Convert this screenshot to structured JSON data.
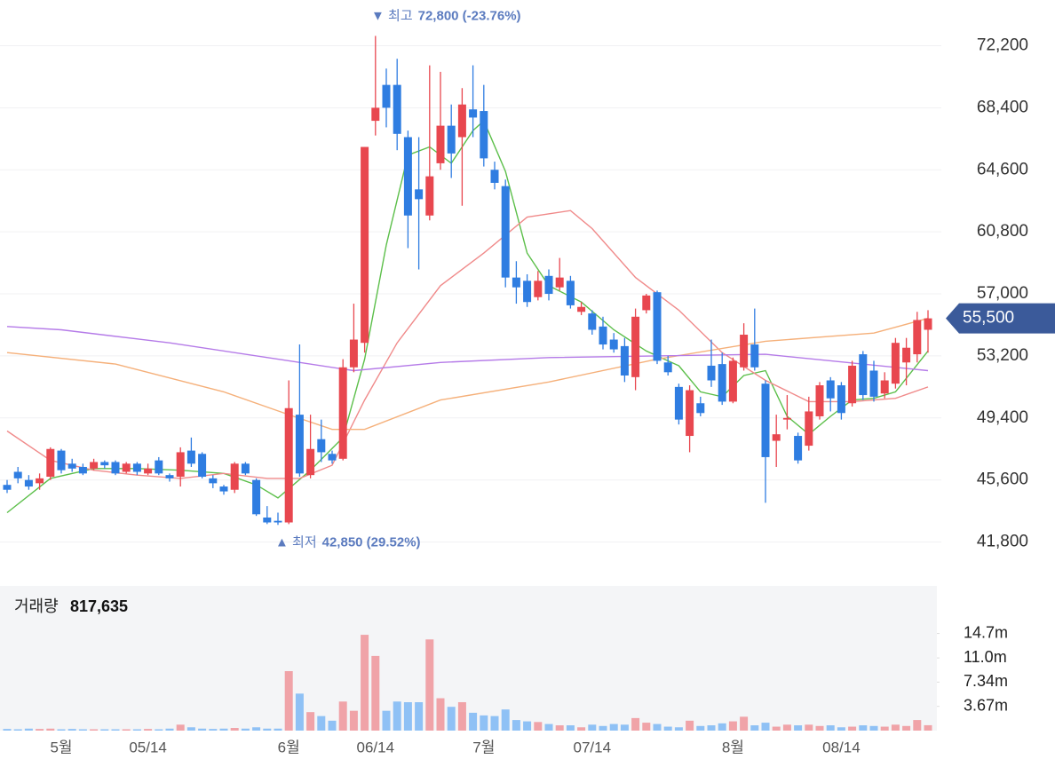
{
  "chart_data": {
    "type": "candlestick",
    "categories": [
      null,
      null,
      null,
      null,
      null,
      "5월",
      null,
      null,
      null,
      null,
      null,
      null,
      null,
      "05/14",
      null,
      null,
      null,
      null,
      null,
      null,
      null,
      null,
      null,
      null,
      null,
      null,
      "6월",
      null,
      null,
      null,
      null,
      null,
      null,
      null,
      "06/14",
      null,
      null,
      null,
      null,
      null,
      null,
      null,
      null,
      null,
      "7월",
      null,
      null,
      null,
      null,
      null,
      null,
      null,
      null,
      null,
      "07/14",
      null,
      null,
      null,
      null,
      null,
      null,
      null,
      null,
      null,
      null,
      null,
      null,
      "8월",
      null,
      null,
      null,
      null,
      null,
      null,
      null,
      null,
      null,
      "08/14",
      null,
      null,
      null,
      null,
      null,
      null,
      null,
      null
    ],
    "open": [
      45300,
      46100,
      45600,
      45400,
      45800,
      47400,
      46600,
      46400,
      46300,
      46700,
      46700,
      46100,
      46600,
      46000,
      46800,
      45900,
      45800,
      47400,
      47200,
      45700,
      45200,
      45000,
      46600,
      45600,
      43300,
      43100,
      43000,
      49600,
      45900,
      48100,
      47200,
      46900,
      52500,
      54000,
      67600,
      69800,
      69800,
      66600,
      63400,
      61800,
      65000,
      67300,
      66600,
      68300,
      68200,
      64600,
      63600,
      58000,
      57800,
      56800,
      58100,
      57400,
      57800,
      55900,
      55800,
      55000,
      54200,
      53800,
      51900,
      56000,
      57100,
      52800,
      51300,
      48300,
      50300,
      52600,
      52700,
      50400,
      52500,
      53900,
      51500,
      48000,
      49300,
      48300,
      47700,
      49500,
      51700,
      51400,
      50300,
      53300,
      52300,
      50900,
      51500,
      52800,
      53300,
      54800
    ],
    "high": [
      45600,
      46400,
      45900,
      46000,
      47600,
      47500,
      46900,
      46600,
      46900,
      46800,
      46800,
      46700,
      46700,
      46600,
      47000,
      46000,
      47600,
      48200,
      47300,
      45900,
      45300,
      46700,
      46700,
      45700,
      44000,
      43600,
      51700,
      53900,
      49600,
      49300,
      47400,
      53000,
      56400,
      66000,
      72800,
      70800,
      71400,
      67000,
      66600,
      71000,
      70600,
      68600,
      69600,
      71000,
      69800,
      65100,
      64000,
      59000,
      58200,
      58400,
      58500,
      59200,
      58100,
      56500,
      56000,
      55600,
      54600,
      54300,
      56100,
      57000,
      57200,
      53200,
      51500,
      51400,
      50700,
      54200,
      53400,
      53100,
      55200,
      56100,
      51700,
      49600,
      50800,
      48500,
      50700,
      51600,
      51900,
      51600,
      52900,
      53500,
      52900,
      52200,
      54300,
      54300,
      55900,
      56000
    ],
    "low": [
      44800,
      45400,
      45000,
      45000,
      45600,
      46000,
      46100,
      45900,
      46200,
      46300,
      45900,
      46000,
      45900,
      45900,
      45900,
      45500,
      45200,
      46400,
      45700,
      45100,
      44700,
      44800,
      45900,
      43400,
      42900,
      42850,
      42900,
      45800,
      45700,
      46700,
      46600,
      46800,
      52200,
      53400,
      66700,
      67200,
      65800,
      59800,
      58500,
      61500,
      64600,
      64100,
      62400,
      66600,
      64800,
      63400,
      57400,
      56400,
      56200,
      56600,
      56600,
      57200,
      56100,
      55700,
      54500,
      53600,
      53400,
      51600,
      51100,
      55800,
      52700,
      52000,
      49000,
      47300,
      49500,
      51300,
      50200,
      50300,
      52300,
      52300,
      44200,
      46400,
      48700,
      46600,
      47400,
      49300,
      49800,
      49300,
      50100,
      50500,
      50400,
      50600,
      51200,
      51400,
      52800,
      53400
    ],
    "close": [
      45000,
      45700,
      45200,
      45700,
      47500,
      46200,
      46300,
      46000,
      46700,
      46500,
      46000,
      46600,
      46100,
      46300,
      46000,
      45700,
      47300,
      46600,
      45800,
      45400,
      44900,
      46600,
      46000,
      43500,
      43000,
      43000,
      50000,
      46000,
      47500,
      47300,
      46800,
      52500,
      54200,
      66000,
      68400,
      68400,
      66800,
      61800,
      62800,
      64200,
      67300,
      65600,
      68600,
      67800,
      65300,
      63800,
      58000,
      57400,
      56500,
      57800,
      57000,
      58000,
      56300,
      56200,
      54800,
      53900,
      53600,
      52000,
      55600,
      56900,
      52900,
      52200,
      49300,
      51100,
      49700,
      51700,
      50400,
      52900,
      54500,
      52500,
      47000,
      48400,
      49400,
      46800,
      49800,
      51400,
      50600,
      49700,
      52600,
      50800,
      50700,
      51700,
      54000,
      53700,
      55400,
      55500
    ],
    "up_color": "#e8474f",
    "down_color": "#2f7de1",
    "ylim": [
      40200,
      75000
    ],
    "yticks": [
      {
        "value": 72200,
        "label": "72,200"
      },
      {
        "value": 68400,
        "label": "68,400"
      },
      {
        "value": 64600,
        "label": "64,600"
      },
      {
        "value": 60800,
        "label": "60,800"
      },
      {
        "value": 57000,
        "label": "57,000"
      },
      {
        "value": 53200,
        "label": "53,200"
      },
      {
        "value": 49400,
        "label": "49,400"
      },
      {
        "value": 45600,
        "label": "45,600"
      },
      {
        "value": 41800,
        "label": "41,800"
      }
    ],
    "grid": true,
    "moving_averages": [
      {
        "color": "#5cbf4a",
        "x": [
          0,
          4,
          8,
          12,
          16,
          20,
          23,
          25,
          28,
          31,
          33,
          35,
          37,
          39,
          41,
          43,
          44,
          46,
          48,
          50,
          53,
          56,
          59,
          62,
          64,
          66,
          68,
          70,
          72,
          74,
          76,
          78,
          80,
          82,
          85
        ],
        "values": [
          43600,
          45700,
          46300,
          46300,
          46200,
          46000,
          45300,
          44500,
          46200,
          48200,
          53000,
          60000,
          65500,
          66000,
          65000,
          67000,
          67600,
          64500,
          59500,
          57500,
          56500,
          54800,
          53500,
          52600,
          51000,
          50700,
          52000,
          52300,
          49500,
          48400,
          49500,
          50500,
          50600,
          51000,
          53500
        ]
      },
      {
        "color": "#f08a8a",
        "x": [
          0,
          4,
          8,
          12,
          16,
          20,
          24,
          27,
          30,
          33,
          36,
          40,
          44,
          48,
          52,
          54,
          58,
          62,
          66,
          70,
          74,
          78,
          82,
          85
        ],
        "values": [
          48600,
          46800,
          46200,
          45900,
          45700,
          46000,
          45700,
          45700,
          46500,
          50500,
          54000,
          57500,
          59500,
          61700,
          62100,
          61000,
          58000,
          56000,
          53400,
          51700,
          50400,
          50400,
          50600,
          51300
        ]
      },
      {
        "color": "#f5b07a",
        "x": [
          0,
          10,
          20,
          26,
          30,
          33,
          40,
          50,
          60,
          70,
          80,
          85
        ],
        "values": [
          53400,
          52700,
          51000,
          49600,
          48700,
          48700,
          50500,
          51600,
          53000,
          54100,
          54600,
          55500
        ]
      },
      {
        "color": "#b57be8",
        "x": [
          0,
          5,
          15,
          25,
          32,
          40,
          50,
          60,
          70,
          76,
          85
        ],
        "values": [
          55000,
          54800,
          54000,
          53000,
          52300,
          52800,
          53100,
          53200,
          53300,
          52900,
          52300
        ]
      }
    ],
    "high_annotation": {
      "label": "▼ 최고",
      "value": 72800,
      "value_label": "72,800 (-23.76%)"
    },
    "low_annotation": {
      "label": "▲ 최저",
      "value": 42850,
      "value_label": "42,850 (29.52%)"
    },
    "current_price": {
      "value": 55500,
      "label": "55,500"
    },
    "volume": {
      "title": "거래량",
      "current": {
        "value": 817635,
        "label": "817,635"
      },
      "up_color": "#f0a3a8",
      "down_color": "#8fc1f5",
      "ylim": [
        0,
        21900000
      ],
      "yticks": [
        {
          "value": 3670000,
          "label": "3.67m"
        },
        {
          "value": 7340000,
          "label": "7.34m"
        },
        {
          "value": 11000000,
          "label": "11.0m"
        },
        {
          "value": 14700000,
          "label": "14.7m"
        }
      ],
      "values": [
        250000,
        200000,
        300000,
        250000,
        300000,
        200000,
        250000,
        200000,
        200000,
        200000,
        200000,
        200000,
        200000,
        250000,
        200000,
        300000,
        900000,
        500000,
        300000,
        250000,
        300000,
        400000,
        300000,
        500000,
        300000,
        300000,
        9000000,
        5600000,
        2800000,
        2200000,
        1500000,
        4400000,
        3000000,
        14500000,
        11300000,
        3000000,
        4400000,
        4300000,
        4300000,
        13800000,
        4900000,
        3600000,
        4300000,
        2700000,
        2300000,
        2200000,
        3200000,
        1600000,
        1400000,
        1300000,
        1000000,
        800000,
        800000,
        500000,
        900000,
        700000,
        1000000,
        900000,
        1900000,
        1200000,
        1000000,
        600000,
        500000,
        1500000,
        700000,
        800000,
        1100000,
        1400000,
        2100000,
        800000,
        1200000,
        600000,
        900000,
        800000,
        900000,
        700000,
        800000,
        500000,
        600000,
        800000,
        700000,
        600000,
        900000,
        700000,
        1600000,
        817635
      ]
    }
  }
}
